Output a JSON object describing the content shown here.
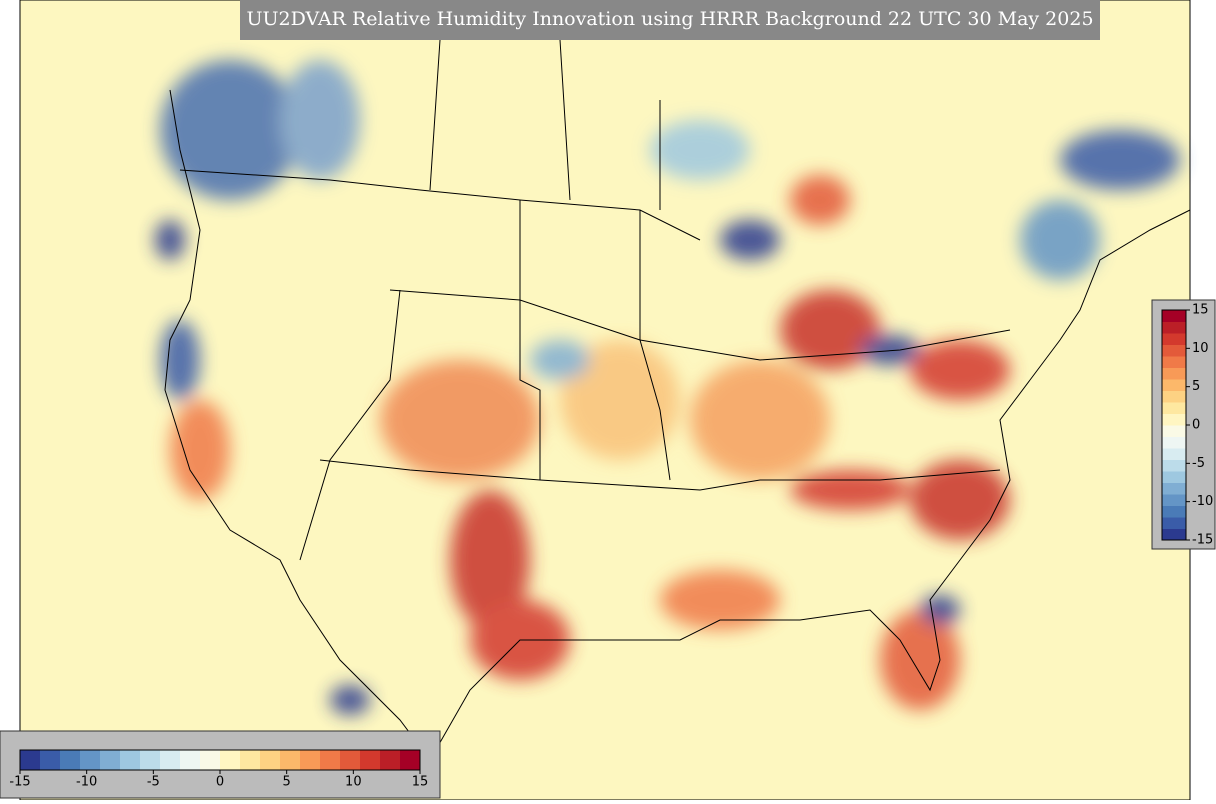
{
  "title": "UU2DVAR Relative Humidity Innovation using HRRR Background 22 UTC 30 May 2025",
  "colorbars": [
    {
      "orientation": "horizontal",
      "lim": [
        -15,
        15
      ],
      "ticks": [
        -15,
        -10,
        -5,
        0,
        5,
        10,
        15
      ],
      "colors": [
        "#2b3a8f",
        "#3a5ca8",
        "#4a7bb7",
        "#6495c6",
        "#80aed3",
        "#9ec8e0",
        "#bcdcea",
        "#d8ecf1",
        "#eef6f3",
        "#fafae6",
        "#fff6c2",
        "#fee8a0",
        "#fdd283",
        "#fcb86a",
        "#f89a57",
        "#f07a48",
        "#e35a3a",
        "#d3392d",
        "#bb1f27",
        "#a50026"
      ]
    },
    {
      "orientation": "vertical",
      "lim": [
        -15,
        15
      ],
      "ticks": [
        -15,
        -10,
        -5,
        0,
        5,
        10,
        15
      ],
      "colors": [
        "#2b3a8f",
        "#3a5ca8",
        "#4a7bb7",
        "#6495c6",
        "#80aed3",
        "#9ec8e0",
        "#bcdcea",
        "#d8ecf1",
        "#eef6f3",
        "#fafae6",
        "#fff6c2",
        "#fee8a0",
        "#fdd283",
        "#fcb86a",
        "#f89a57",
        "#f07a48",
        "#e35a3a",
        "#d3392d",
        "#bb1f27",
        "#a50026"
      ]
    }
  ]
}
